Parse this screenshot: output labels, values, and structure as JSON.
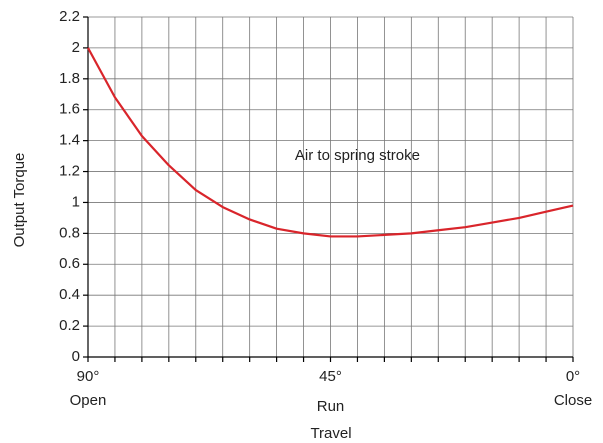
{
  "chart_data": {
    "type": "line",
    "x": [
      90,
      85,
      80,
      75,
      70,
      65,
      60,
      55,
      50,
      45,
      40,
      35,
      30,
      25,
      20,
      15,
      10,
      5,
      0
    ],
    "series": [
      {
        "name": "Output Torque",
        "color": "#d9252b",
        "values": [
          2.0,
          1.68,
          1.43,
          1.24,
          1.08,
          0.97,
          0.89,
          0.83,
          0.8,
          0.78,
          0.78,
          0.79,
          0.8,
          0.82,
          0.84,
          0.87,
          0.9,
          0.94,
          0.98
        ]
      }
    ],
    "xlim": [
      90,
      0
    ],
    "xticks": [
      {
        "value": 90,
        "label": "90°"
      },
      {
        "value": 45,
        "label": "45°"
      },
      {
        "value": 0,
        "label": "0°"
      }
    ],
    "xtick_sublabels": [
      "Open",
      "Run",
      "Close"
    ],
    "xgrid": [
      90,
      85,
      80,
      75,
      70,
      65,
      60,
      55,
      50,
      45,
      40,
      35,
      30,
      25,
      20,
      15,
      10,
      5,
      0
    ],
    "ylim": [
      0,
      2.2
    ],
    "yticks": [
      0,
      0.2,
      0.4,
      0.6,
      0.8,
      1,
      1.2,
      1.4,
      1.6,
      1.8,
      2,
      2.2
    ],
    "grid": true,
    "xlabel": "Travel",
    "ylabel": "Output Torque",
    "annotation": {
      "text": "Air to spring stroke",
      "x": 40,
      "y": 1.3
    }
  }
}
